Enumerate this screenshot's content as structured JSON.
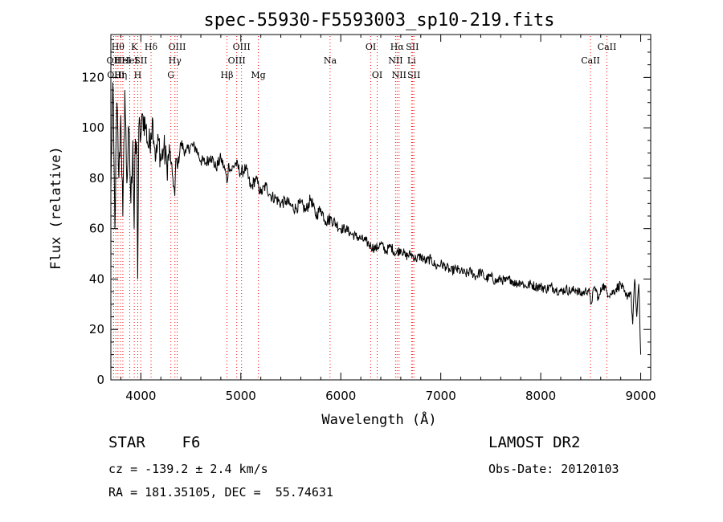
{
  "chart_data": {
    "type": "line",
    "title": "spec-55930-F5593003_sp10-219.fits",
    "xlabel": "Wavelength (Å)",
    "ylabel": "Flux (relative)",
    "xlim": [
      3700,
      9100
    ],
    "ylim": [
      0,
      137
    ],
    "x_ticks": [
      4000,
      5000,
      6000,
      7000,
      8000,
      9000
    ],
    "y_ticks": [
      0,
      20,
      40,
      60,
      80,
      100,
      120
    ],
    "grid": false,
    "series": [
      {
        "color": "#000000",
        "x": [
          3700,
          3720,
          3740,
          3760,
          3780,
          3800,
          3820,
          3840,
          3860,
          3880,
          3900,
          3920,
          3933,
          3940,
          3960,
          3968,
          3980,
          4000,
          4020,
          4050,
          4080,
          4100,
          4120,
          4150,
          4180,
          4200,
          4230,
          4260,
          4290,
          4320,
          4340,
          4350,
          4370,
          4400,
          4450,
          4500,
          4550,
          4600,
          4650,
          4700,
          4750,
          4800,
          4850,
          4861,
          4880,
          4900,
          4950,
          5000,
          5050,
          5100,
          5150,
          5200,
          5250,
          5300,
          5350,
          5400,
          5450,
          5500,
          5550,
          5600,
          5650,
          5700,
          5750,
          5800,
          5850,
          5900,
          5950,
          6000,
          6050,
          6100,
          6150,
          6200,
          6250,
          6300,
          6350,
          6400,
          6450,
          6500,
          6550,
          6600,
          6650,
          6700,
          6750,
          6800,
          6850,
          6900,
          6950,
          7000,
          7050,
          7100,
          7150,
          7200,
          7250,
          7300,
          7350,
          7400,
          7450,
          7500,
          7550,
          7600,
          7650,
          7700,
          7750,
          7800,
          7850,
          7900,
          7950,
          8000,
          8050,
          8100,
          8150,
          8200,
          8250,
          8300,
          8350,
          8400,
          8440,
          8480,
          8500,
          8540,
          8580,
          8620,
          8660,
          8700,
          8750,
          8800,
          8850,
          8900,
          8920,
          8940,
          8960,
          8980,
          9000
        ],
        "y": [
          75,
          118,
          60,
          110,
          80,
          105,
          65,
          115,
          78,
          100,
          70,
          95,
          60,
          88,
          92,
          40,
          100,
          96,
          105,
          100,
          92,
          98,
          103,
          88,
          95,
          87,
          92,
          85,
          90,
          80,
          73,
          88,
          85,
          94,
          90,
          93,
          92,
          87,
          86,
          89,
          84,
          88,
          82,
          78,
          86,
          83,
          86,
          82,
          84,
          76,
          80,
          74,
          77,
          73,
          72,
          70,
          71,
          69,
          68,
          70,
          67,
          72,
          65,
          68,
          63,
          64,
          62,
          60,
          60,
          58,
          57,
          56,
          55,
          53,
          52,
          54,
          51,
          53,
          50,
          52,
          49,
          50,
          48,
          49,
          47,
          48,
          45,
          46,
          45,
          43,
          44,
          43,
          42,
          43,
          41,
          43,
          40,
          41,
          39,
          40,
          39,
          40,
          38,
          39,
          37,
          38,
          37,
          37,
          36,
          37,
          36,
          35,
          36,
          35,
          36,
          34,
          35,
          36,
          30,
          37,
          32,
          38,
          35,
          34,
          36,
          38,
          33,
          35,
          22,
          40,
          25,
          38,
          10
        ]
      }
    ],
    "line_labels": [
      {
        "wavelength": 3727,
        "label": "OII",
        "row": 1
      },
      {
        "wavelength": 3750,
        "label": "OIII",
        "row": 2
      },
      {
        "wavelength": 3771,
        "label": "Hθ",
        "row": 0
      },
      {
        "wavelength": 3798,
        "label": "Hη",
        "row": 2
      },
      {
        "wavelength": 3820,
        "label": "HeI",
        "row": 1
      },
      {
        "wavelength": 3889,
        "label": "HeI",
        "row": 1
      },
      {
        "wavelength": 3934,
        "label": "K",
        "row": 0
      },
      {
        "wavelength": 3969,
        "label": "H",
        "row": 2
      },
      {
        "wavelength": 4000,
        "label": "SII",
        "row": 1
      },
      {
        "wavelength": 4102,
        "label": "Hδ",
        "row": 0
      },
      {
        "wavelength": 4300,
        "label": "G",
        "row": 2
      },
      {
        "wavelength": 4341,
        "label": "Hγ",
        "row": 1
      },
      {
        "wavelength": 4363,
        "label": "OIII",
        "row": 0
      },
      {
        "wavelength": 4861,
        "label": "Hβ",
        "row": 2
      },
      {
        "wavelength": 4959,
        "label": "OIII",
        "row": 1
      },
      {
        "wavelength": 5007,
        "label": "OIII",
        "row": 0
      },
      {
        "wavelength": 5175,
        "label": "Mg",
        "row": 2
      },
      {
        "wavelength": 5893,
        "label": "Na",
        "row": 1
      },
      {
        "wavelength": 6300,
        "label": "OI",
        "row": 0
      },
      {
        "wavelength": 6364,
        "label": "OI",
        "row": 2
      },
      {
        "wavelength": 6548,
        "label": "NII",
        "row": 1
      },
      {
        "wavelength": 6563,
        "label": "Hα",
        "row": 0
      },
      {
        "wavelength": 6583,
        "label": "NII",
        "row": 2
      },
      {
        "wavelength": 6708,
        "label": "Li",
        "row": 1
      },
      {
        "wavelength": 6716,
        "label": "SII",
        "row": 0
      },
      {
        "wavelength": 6731,
        "label": "SII",
        "row": 2
      },
      {
        "wavelength": 8498,
        "label": "CaII",
        "row": 1
      },
      {
        "wavelength": 8662,
        "label": "CaII",
        "row": 0
      }
    ],
    "line_color": "#ff0000"
  },
  "footer": {
    "object_class": "STAR    F6",
    "survey": "LAMOST DR2",
    "redshift": "cz = -139.2 ± 2.4 km/s",
    "obs_date": "Obs-Date: 20120103",
    "coordinates": "RA = 181.35105, DEC =  55.74631"
  }
}
